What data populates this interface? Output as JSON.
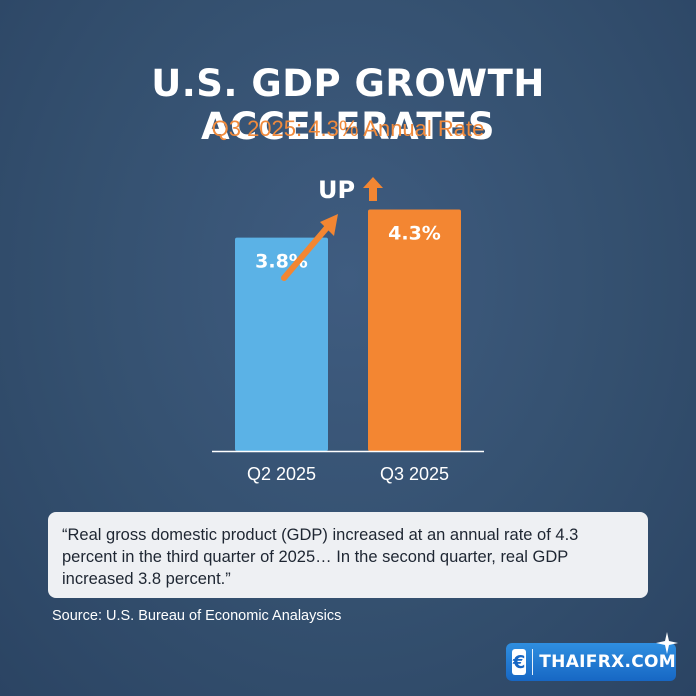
{
  "header": {
    "title": "U.S. GDP GROWTH ACCELERATES",
    "subtitle": "Q3 2025: 4.3% Annual Rate"
  },
  "trend": {
    "label": "UP",
    "direction": "up"
  },
  "chart_data": {
    "type": "bar",
    "categories": [
      "Q2 2025",
      "Q3 2025"
    ],
    "values": [
      3.8,
      4.3
    ],
    "data_labels": [
      "3.8%",
      "4.3%"
    ],
    "colors": [
      "#5bb2e6",
      "#f38632"
    ],
    "ylim": [
      0,
      5.2
    ],
    "grid": false,
    "legend": "none"
  },
  "quote": {
    "text": "“Real gross domestic product (GDP) increased at an annual rate of 4.3 percent in the third quarter of 2025… In the second quarter, real GDP increased 3.8 percent.”"
  },
  "source": "Source: U.S. Bureau of Economic Analaysics",
  "brand": {
    "icon": "euro-icon",
    "icon_glyph": "€",
    "name": "THAIFRX.COM",
    "color": "#1f7ad6"
  },
  "colors": {
    "background": "#34506f",
    "accent": "#f08a3c",
    "bar_q2": "#5bb2e6",
    "bar_q3": "#f38632"
  }
}
